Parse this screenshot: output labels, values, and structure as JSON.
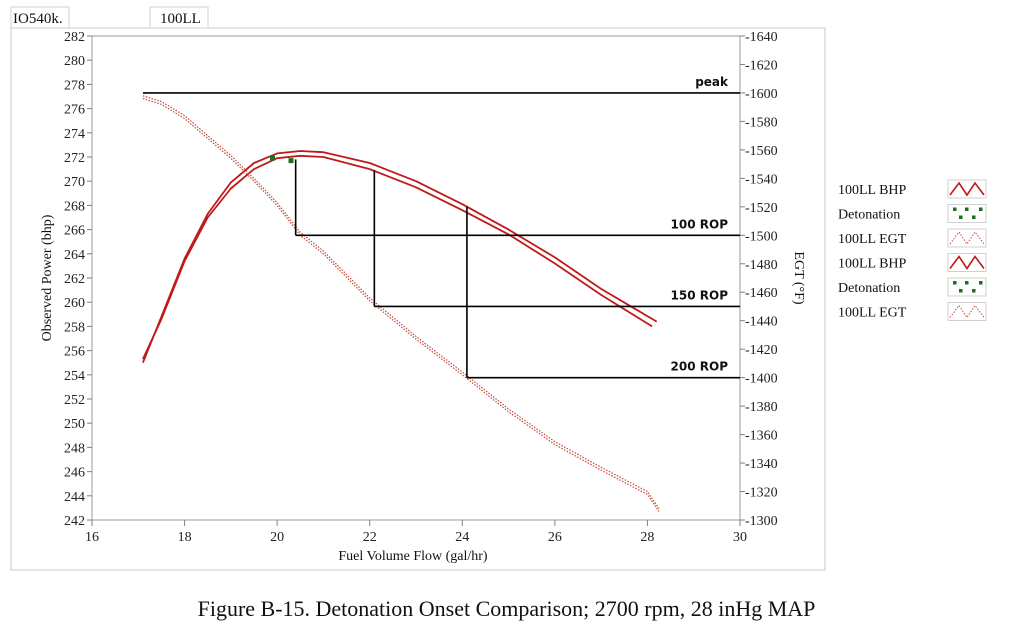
{
  "header": {
    "engine": "IO540k.",
    "fuel": "100LL"
  },
  "caption": "Figure B-15.  Detonation Onset Comparison; 2700 rpm, 28 inHg MAP",
  "chart_data": {
    "type": "line",
    "xlabel": "Fuel Volume Flow (gal/hr)",
    "ylabel": "Observed Power (bhp)",
    "y2label": "EGT (°F)",
    "xlim": [
      16,
      30
    ],
    "ylim": [
      242,
      282
    ],
    "y2lim": [
      1300,
      1640
    ],
    "xticks": [
      16,
      18,
      20,
      22,
      24,
      26,
      28,
      30
    ],
    "yticks": [
      242,
      244,
      246,
      248,
      250,
      252,
      254,
      256,
      258,
      260,
      262,
      264,
      266,
      268,
      270,
      272,
      274,
      276,
      278,
      280,
      282
    ],
    "y2ticks": [
      "-1300",
      "-1320",
      "-1340",
      "-1360",
      "-1380",
      "-1400",
      "-1420",
      "-1440",
      "-1460",
      "-1480",
      "-1500",
      "-1520",
      "-1540",
      "-1560",
      "-1580",
      "-1600",
      "-1620",
      "-1640"
    ],
    "legend": [
      "100LL BHP",
      "Detonation",
      "100LL EGT",
      "100LL BHP",
      "Detonation",
      "100LL EGT"
    ],
    "colors": {
      "bhp": "#c0191b",
      "egt": "#c44a3a",
      "detonation": "#1e6e1e",
      "egt_blue": "#3a5fb0",
      "ref": "#000000",
      "axis": "#808080"
    },
    "series": [
      {
        "axis": "left",
        "role": "bhp",
        "x": [
          17.1,
          17.5,
          18,
          18.5,
          19,
          19.5,
          20,
          20.5,
          21,
          22,
          23,
          24,
          25,
          26,
          27,
          28.1
        ],
        "y": [
          255.3,
          258.6,
          263.4,
          267.0,
          269.4,
          271.0,
          271.9,
          272.1,
          272.0,
          271.0,
          269.5,
          267.6,
          265.6,
          263.2,
          260.6,
          258.0
        ]
      },
      {
        "axis": "left",
        "role": "bhp",
        "x": [
          17.1,
          17.5,
          18,
          18.5,
          19,
          19.5,
          20,
          20.5,
          21,
          22,
          23,
          24,
          25,
          26,
          27,
          28.2
        ],
        "y": [
          255.0,
          258.8,
          263.6,
          267.3,
          269.9,
          271.5,
          272.3,
          272.5,
          272.4,
          271.5,
          270.0,
          268.1,
          266.0,
          263.7,
          261.1,
          258.4
        ]
      },
      {
        "axis": "right",
        "role": "egt",
        "x": [
          17.1,
          17.5,
          18,
          18.5,
          19,
          19.5,
          20,
          20.5,
          21,
          22,
          23,
          24,
          25,
          26,
          27,
          28,
          28.25
        ],
        "y": [
          1596,
          1592,
          1582,
          1568,
          1554,
          1538,
          1521,
          1500,
          1487,
          1454,
          1427,
          1402,
          1376,
          1353,
          1335,
          1318,
          1306
        ]
      },
      {
        "axis": "right",
        "role": "egt",
        "x": [
          17.1,
          17.5,
          18,
          18.5,
          19,
          19.5,
          20,
          20.5,
          21,
          22,
          23,
          24,
          25,
          26,
          27,
          28,
          28.25
        ],
        "y": [
          1598,
          1594,
          1584,
          1570,
          1556,
          1540,
          1523,
          1502,
          1489,
          1456,
          1429,
          1404,
          1378,
          1355,
          1337,
          1320,
          1308
        ]
      }
    ],
    "detonation_points": [
      {
        "x": 19.9,
        "y": 271.9
      },
      {
        "x": 20.3,
        "y": 271.7
      }
    ],
    "reference_lines": [
      {
        "label": "peak",
        "y2": 1600,
        "x_from": 17.1,
        "x_to": 30
      },
      {
        "label": "100 ROP",
        "y2": 1500,
        "x_from": 20.4,
        "x_to": 30
      },
      {
        "label": "150 ROP",
        "y2": 1450,
        "x_from": 22.1,
        "x_to": 30
      },
      {
        "label": "200 ROP",
        "y2": 1400,
        "x_from": 24.1,
        "x_to": 30
      }
    ],
    "drop_lines": [
      {
        "x": 20.4,
        "from_left": 271.8,
        "to_y2": 1500
      },
      {
        "x": 22.1,
        "from_left": 270.9,
        "to_y2": 1450
      },
      {
        "x": 24.1,
        "from_left": 267.9,
        "to_y2": 1400
      }
    ]
  }
}
